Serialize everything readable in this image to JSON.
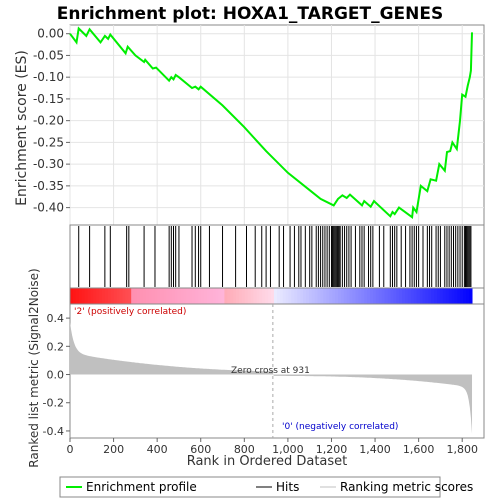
{
  "chart_data": {
    "type": "line",
    "title": "Enrichment plot: HOXA1_TARGET_GENES",
    "top_panel": {
      "ylabel": "Enrichment score (ES)",
      "ylim": [
        -0.44,
        0.02
      ],
      "yticks": [
        0.0,
        -0.05,
        -0.1,
        -0.15,
        -0.2,
        -0.25,
        -0.3,
        -0.35,
        -0.4
      ],
      "ytick_labels": [
        "0.00",
        "-0.05",
        "-0.10",
        "-0.15",
        "-0.20",
        "-0.25",
        "-0.30",
        "-0.35",
        "-0.40"
      ],
      "grid": true,
      "series_color": "#00ee00",
      "es_profile": [
        [
          0,
          0.0
        ],
        [
          30,
          -0.02
        ],
        [
          40,
          0.012
        ],
        [
          75,
          -0.005
        ],
        [
          90,
          0.01
        ],
        [
          140,
          -0.02
        ],
        [
          160,
          -0.005
        ],
        [
          175,
          -0.012
        ],
        [
          185,
          -0.002
        ],
        [
          255,
          -0.045
        ],
        [
          265,
          -0.03
        ],
        [
          300,
          -0.05
        ],
        [
          340,
          -0.065
        ],
        [
          345,
          -0.06
        ],
        [
          380,
          -0.08
        ],
        [
          395,
          -0.078
        ],
        [
          455,
          -0.108
        ],
        [
          465,
          -0.1
        ],
        [
          475,
          -0.105
        ],
        [
          485,
          -0.095
        ],
        [
          500,
          -0.1
        ],
        [
          560,
          -0.125
        ],
        [
          575,
          -0.122
        ],
        [
          590,
          -0.128
        ],
        [
          600,
          -0.122
        ],
        [
          700,
          -0.165
        ],
        [
          800,
          -0.215
        ],
        [
          900,
          -0.27
        ],
        [
          1000,
          -0.32
        ],
        [
          1100,
          -0.36
        ],
        [
          1150,
          -0.38
        ],
        [
          1210,
          -0.395
        ],
        [
          1230,
          -0.38
        ],
        [
          1250,
          -0.372
        ],
        [
          1270,
          -0.378
        ],
        [
          1285,
          -0.37
        ],
        [
          1340,
          -0.395
        ],
        [
          1350,
          -0.385
        ],
        [
          1380,
          -0.398
        ],
        [
          1395,
          -0.385
        ],
        [
          1470,
          -0.42
        ],
        [
          1480,
          -0.41
        ],
        [
          1490,
          -0.415
        ],
        [
          1510,
          -0.4
        ],
        [
          1570,
          -0.422
        ],
        [
          1575,
          -0.4
        ],
        [
          1590,
          -0.41
        ],
        [
          1610,
          -0.35
        ],
        [
          1640,
          -0.362
        ],
        [
          1655,
          -0.335
        ],
        [
          1680,
          -0.338
        ],
        [
          1695,
          -0.3
        ],
        [
          1720,
          -0.315
        ],
        [
          1730,
          -0.272
        ],
        [
          1745,
          -0.27
        ],
        [
          1755,
          -0.25
        ],
        [
          1775,
          -0.265
        ],
        [
          1790,
          -0.2
        ],
        [
          1800,
          -0.14
        ],
        [
          1815,
          -0.145
        ],
        [
          1825,
          -0.12
        ],
        [
          1835,
          -0.1
        ],
        [
          1840,
          -0.085
        ],
        [
          1845,
          0.003
        ]
      ]
    },
    "hits": [
      40,
      90,
      160,
      185,
      260,
      270,
      340,
      390,
      455,
      465,
      475,
      485,
      500,
      560,
      575,
      590,
      600,
      640,
      700,
      760,
      810,
      850,
      880,
      900,
      920,
      960,
      980,
      1010,
      1030,
      1050,
      1060,
      1080,
      1100,
      1110,
      1130,
      1140,
      1150,
      1160,
      1170,
      1180,
      1190,
      1200,
      1205,
      1210,
      1215,
      1220,
      1225,
      1230,
      1235,
      1240,
      1250,
      1260,
      1270,
      1280,
      1290,
      1310,
      1330,
      1340,
      1350,
      1370,
      1380,
      1390,
      1420,
      1440,
      1470,
      1480,
      1490,
      1500,
      1520,
      1540,
      1560,
      1570,
      1580,
      1590,
      1600,
      1620,
      1640,
      1650,
      1660,
      1680,
      1690,
      1700,
      1720,
      1730,
      1740,
      1750,
      1760,
      1770,
      1780,
      1790,
      1800,
      1810,
      1815,
      1820,
      1825,
      1830,
      1835,
      1840
    ],
    "colorbar": {
      "label_positive": "'2' (positively correlated)",
      "label_negative": "'0' (negatively correlated)",
      "positive_color": "#ff0000",
      "negative_color": "#0000ff"
    },
    "bottom_panel": {
      "ylabel": "Ranked list metric (Signal2Noise)",
      "xlabel": "Rank in Ordered Dataset",
      "ylim": [
        -0.45,
        0.5
      ],
      "yticks": [
        0.4,
        0.2,
        0.0,
        -0.2,
        -0.4
      ],
      "ytick_labels": [
        "0.4",
        "0.2",
        "0.0",
        "-0.2",
        "-0.4"
      ],
      "xlim": [
        0,
        1900
      ],
      "xticks": [
        0,
        200,
        400,
        600,
        800,
        1000,
        1200,
        1400,
        1600,
        1800
      ],
      "xtick_labels": [
        "0",
        "200",
        "400",
        "600",
        "800",
        "1,000",
        "1,200",
        "1,400",
        "1,600",
        "1,800"
      ],
      "zero_cross_label": "Zero cross at 931",
      "zero_cross": 931,
      "n_genes": 1845
    },
    "legend": [
      {
        "label": "Enrichment profile",
        "color": "#00ee00"
      },
      {
        "label": "Hits",
        "color": "#000000"
      },
      {
        "label": "Ranking metric scores",
        "color": "#c0c0c0"
      }
    ]
  }
}
